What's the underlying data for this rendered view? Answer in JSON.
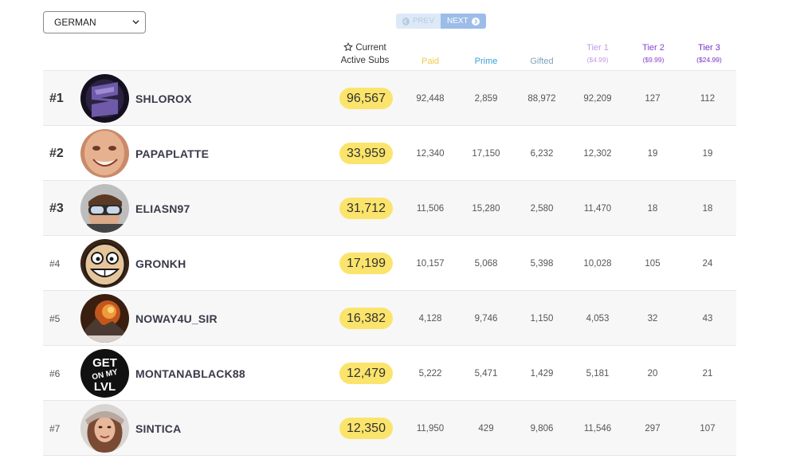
{
  "filter": {
    "selected": "GERMAN"
  },
  "pager": {
    "prev_label": "PREV",
    "next_label": "NEXT"
  },
  "header": {
    "current_line1": "Current",
    "current_line2": "Active Subs",
    "paid": "Paid",
    "prime": "Prime",
    "gifted": "Gifted",
    "tier1": "Tier 1",
    "tier1_price": "($4.99)",
    "tier2": "Tier 2",
    "tier2_price": "($9.99)",
    "tier3": "Tier 3",
    "tier3_price": "($24.99)"
  },
  "rows": [
    {
      "rank": "#1",
      "name": "SHLOROX",
      "subs": "96,567",
      "paid": "92,448",
      "prime": "2,859",
      "gifted": "88,972",
      "t1": "92,209",
      "t2": "127",
      "t3": "112"
    },
    {
      "rank": "#2",
      "name": "PAPAPLATTE",
      "subs": "33,959",
      "paid": "12,340",
      "prime": "17,150",
      "gifted": "6,232",
      "t1": "12,302",
      "t2": "19",
      "t3": "19"
    },
    {
      "rank": "#3",
      "name": "ELIASN97",
      "subs": "31,712",
      "paid": "11,506",
      "prime": "15,280",
      "gifted": "2,580",
      "t1": "11,470",
      "t2": "18",
      "t3": "18"
    },
    {
      "rank": "#4",
      "name": "GRONKH",
      "subs": "17,199",
      "paid": "10,157",
      "prime": "5,068",
      "gifted": "5,398",
      "t1": "10,028",
      "t2": "105",
      "t3": "24"
    },
    {
      "rank": "#5",
      "name": "NOWAY4U_SIR",
      "subs": "16,382",
      "paid": "4,128",
      "prime": "9,746",
      "gifted": "1,150",
      "t1": "4,053",
      "t2": "32",
      "t3": "43"
    },
    {
      "rank": "#6",
      "name": "MONTANABLACK88",
      "subs": "12,479",
      "paid": "5,222",
      "prime": "5,471",
      "gifted": "1,429",
      "t1": "5,181",
      "t2": "20",
      "t3": "21"
    },
    {
      "rank": "#7",
      "name": "SINTICA",
      "subs": "12,350",
      "paid": "11,950",
      "prime": "429",
      "gifted": "9,806",
      "t1": "11,546",
      "t2": "297",
      "t3": "107"
    }
  ],
  "avatar_text": {
    "logo1": "GET",
    "logo2": "ON MY",
    "logo3": "LVL"
  },
  "icons": {
    "star": "star-outline-icon",
    "chevron": "chevron-down-icon",
    "prev": "arrow-left-circle-icon",
    "next": "arrow-right-circle-icon"
  }
}
